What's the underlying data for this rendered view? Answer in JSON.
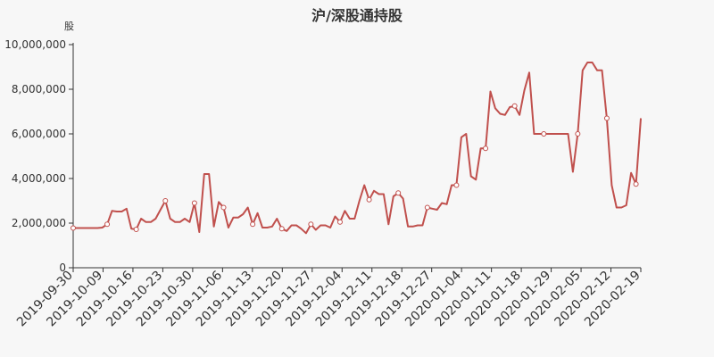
{
  "chart_data": {
    "type": "line",
    "title": "沪/深股通持股",
    "ylabel": "股",
    "xlabel": "",
    "ylim": [
      0,
      10000000
    ],
    "y_ticks": [
      {
        "value": 0,
        "label": "0"
      },
      {
        "value": 2000000,
        "label": "2,000,000"
      },
      {
        "value": 4000000,
        "label": "4,000,000"
      },
      {
        "value": 6000000,
        "label": "6,000,000"
      },
      {
        "value": 8000000,
        "label": "8,000,000"
      },
      {
        "value": 10000000,
        "label": "10,000,000"
      }
    ],
    "x_tick_labels": [
      "2019-09-30",
      "2019-10-09",
      "2019-10-16",
      "2019-10-23",
      "2019-10-30",
      "2019-11-06",
      "2019-11-13",
      "2019-11-20",
      "2019-11-27",
      "2019-12-04",
      "2019-12-11",
      "2019-12-18",
      "2019-12-27",
      "2020-01-04",
      "2020-01-11",
      "2020-01-18",
      "2020-01-29",
      "2020-02-05",
      "2020-02-12",
      "2020-02-19"
    ],
    "grid": false,
    "line_color": "#c0504d",
    "values": [
      1780000,
      1780000,
      1780000,
      1780000,
      1780000,
      1780000,
      1800000,
      1950000,
      2550000,
      2520000,
      2520000,
      2650000,
      1750000,
      1720000,
      2200000,
      2050000,
      2050000,
      2200000,
      2600000,
      3000000,
      2200000,
      2050000,
      2050000,
      2200000,
      2050000,
      2900000,
      1600000,
      4200000,
      4200000,
      1850000,
      2950000,
      2700000,
      1800000,
      2250000,
      2250000,
      2400000,
      2700000,
      1950000,
      2450000,
      1800000,
      1800000,
      1850000,
      2200000,
      1750000,
      1650000,
      1900000,
      1900000,
      1750000,
      1550000,
      1950000,
      1700000,
      1900000,
      1900000,
      1800000,
      2300000,
      2050000,
      2550000,
      2200000,
      2200000,
      3000000,
      3700000,
      3050000,
      3450000,
      3300000,
      3300000,
      1950000,
      3200000,
      3350000,
      3100000,
      1850000,
      1850000,
      1900000,
      1900000,
      2700000,
      2650000,
      2600000,
      2900000,
      2850000,
      3700000,
      3700000,
      5850000,
      6000000,
      4100000,
      3950000,
      5350000,
      5350000,
      7900000,
      7150000,
      6900000,
      6850000,
      7200000,
      7250000,
      6850000,
      7950000,
      8750000,
      6000000,
      6000000,
      6000000,
      6000000,
      6000000,
      6000000,
      6000000,
      6000000,
      4300000,
      6000000,
      8850000,
      9200000,
      9200000,
      8850000,
      8850000,
      6700000,
      3700000,
      2700000,
      2700000,
      2800000,
      4250000,
      3750000,
      6700000
    ],
    "marker_indices": [
      0,
      7,
      13,
      19,
      25,
      31,
      37,
      43,
      49,
      55,
      61,
      67,
      73,
      79,
      85,
      91,
      97,
      104,
      110,
      116
    ]
  }
}
